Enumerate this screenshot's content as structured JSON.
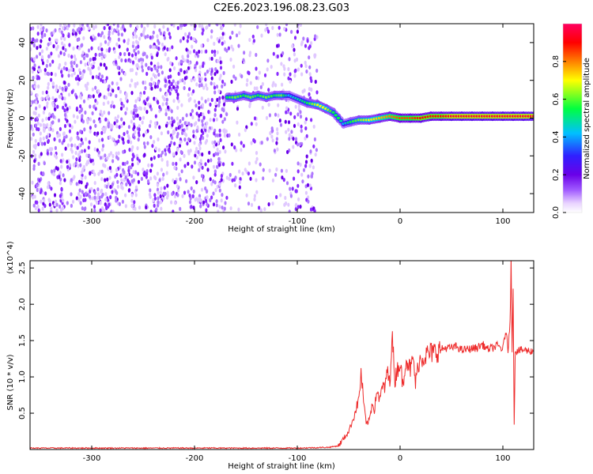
{
  "title": "C2E6.2023.196.08.23.G03",
  "chart_data": [
    {
      "type": "heatmap",
      "xlabel": "Height of straight line (km)",
      "ylabel": "Frequency (Hz)",
      "xlim": [
        -360,
        130
      ],
      "ylim": [
        -50,
        50
      ],
      "xticks": [
        -300,
        -200,
        -100,
        0,
        100
      ],
      "yticks": [
        -40,
        -20,
        0,
        20,
        40
      ],
      "colorbar": {
        "label": "Normalized spectral amplitude",
        "range": [
          0.0,
          1.0
        ],
        "ticks": [
          0.0,
          0.2,
          0.4,
          0.6,
          0.8
        ],
        "colors": [
          "#ffffff",
          "#e8d2ff",
          "#a05aff",
          "#6a00e8",
          "#3020ff",
          "#00c0ff",
          "#00ff40",
          "#ffff00",
          "#ff8000",
          "#ff0000",
          "#ff0060"
        ]
      },
      "noise_region": {
        "x": [
          -360,
          -80
        ],
        "amplitude": 0.3
      },
      "ridge": [
        {
          "x": -168,
          "f": 11,
          "amp": 0.6
        },
        {
          "x": -160,
          "f": 11,
          "amp": 0.65
        },
        {
          "x": -152,
          "f": 12,
          "amp": 0.6
        },
        {
          "x": -145,
          "f": 11,
          "amp": 0.65
        },
        {
          "x": -138,
          "f": 12,
          "amp": 0.6
        },
        {
          "x": -130,
          "f": 11,
          "amp": 0.65
        },
        {
          "x": -122,
          "f": 12,
          "amp": 0.6
        },
        {
          "x": -115,
          "f": 12,
          "amp": 0.65
        },
        {
          "x": -108,
          "f": 12,
          "amp": 0.5
        },
        {
          "x": -90,
          "f": 8,
          "amp": 0.6
        },
        {
          "x": -80,
          "f": 7,
          "amp": 0.7
        },
        {
          "x": -72,
          "f": 5,
          "amp": 0.7
        },
        {
          "x": -65,
          "f": 3,
          "amp": 0.6
        },
        {
          "x": -60,
          "f": 0,
          "amp": 0.6
        },
        {
          "x": -55,
          "f": -3,
          "amp": 0.5
        },
        {
          "x": -48,
          "f": -2,
          "amp": 0.6
        },
        {
          "x": -40,
          "f": -1,
          "amp": 0.65
        },
        {
          "x": -30,
          "f": -1,
          "amp": 0.7
        },
        {
          "x": -20,
          "f": 0,
          "amp": 0.75
        },
        {
          "x": -10,
          "f": 1,
          "amp": 0.8
        },
        {
          "x": 0,
          "f": 0,
          "amp": 0.85
        },
        {
          "x": 10,
          "f": 0,
          "amp": 0.85
        },
        {
          "x": 20,
          "f": 0,
          "amp": 0.9
        },
        {
          "x": 30,
          "f": 1,
          "amp": 0.9
        },
        {
          "x": 40,
          "f": 1,
          "amp": 0.9
        },
        {
          "x": 50,
          "f": 1,
          "amp": 0.95
        },
        {
          "x": 60,
          "f": 1,
          "amp": 0.95
        },
        {
          "x": 70,
          "f": 1,
          "amp": 0.95
        },
        {
          "x": 80,
          "f": 1,
          "amp": 0.95
        },
        {
          "x": 90,
          "f": 1,
          "amp": 0.95
        },
        {
          "x": 100,
          "f": 1,
          "amp": 0.95
        },
        {
          "x": 110,
          "f": 1,
          "amp": 0.95
        },
        {
          "x": 120,
          "f": 1,
          "amp": 0.95
        },
        {
          "x": 130,
          "f": 1,
          "amp": 0.95
        }
      ]
    },
    {
      "type": "line",
      "xlabel": "Height of straight line (km)",
      "ylabel": "SNR (10 * v/v)",
      "yscale_label": "(x10^4)",
      "xlim": [
        -360,
        130
      ],
      "ylim": [
        0,
        2.6
      ],
      "xticks": [
        -300,
        -200,
        -100,
        0,
        100
      ],
      "yticks": [
        0.5,
        1.0,
        1.5,
        2.0,
        2.5
      ],
      "color": "#ee2a2a",
      "series": [
        {
          "x": [
            -360,
            -300,
            -200,
            -100,
            -70,
            -60,
            -55,
            -50,
            -45,
            -40,
            -38,
            -35,
            -33,
            -30,
            -27,
            -25,
            -22,
            -20,
            -17,
            -15,
            -13,
            -10,
            -8,
            -5,
            -3,
            0,
            3,
            5,
            8,
            10,
            13,
            15,
            18,
            20,
            25,
            30,
            35,
            40,
            45,
            50,
            55,
            60,
            65,
            70,
            75,
            80,
            85,
            90,
            95,
            100,
            103,
            105,
            107,
            108,
            109,
            110,
            111,
            112,
            115,
            120,
            130
          ],
          "y": [
            0.02,
            0.02,
            0.02,
            0.02,
            0.03,
            0.05,
            0.15,
            0.25,
            0.45,
            0.7,
            1.05,
            0.6,
            0.35,
            0.4,
            0.65,
            0.55,
            0.85,
            0.65,
            0.9,
            0.8,
            1.1,
            0.9,
            1.6,
            0.95,
            1.1,
            1.2,
            0.85,
            1.25,
            1.2,
            1.1,
            1.25,
            0.9,
            1.2,
            1.25,
            1.3,
            1.33,
            1.35,
            1.38,
            1.4,
            1.4,
            1.42,
            1.37,
            1.38,
            1.39,
            1.4,
            1.45,
            1.38,
            1.4,
            1.43,
            1.38,
            1.65,
            1.35,
            1.8,
            2.6,
            1.3,
            2.3,
            0.35,
            1.35,
            1.36,
            1.37,
            1.35
          ]
        }
      ]
    }
  ]
}
